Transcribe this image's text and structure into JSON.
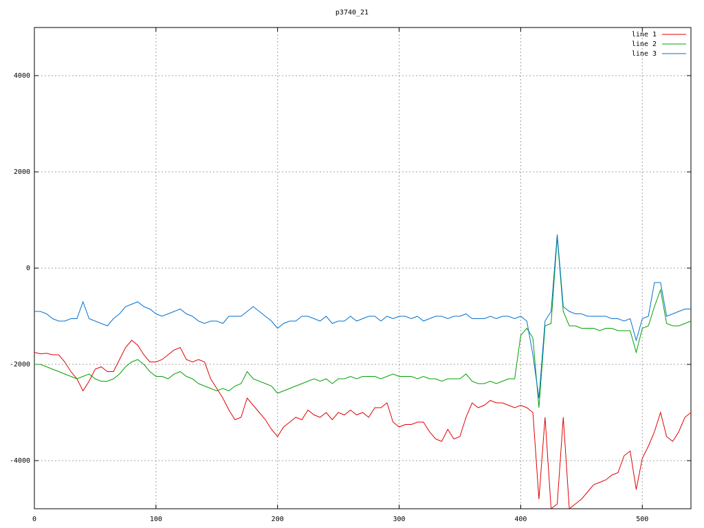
{
  "chart_data": {
    "type": "line",
    "title": "p3740_21",
    "x": [
      0,
      5,
      10,
      15,
      20,
      25,
      30,
      35,
      40,
      45,
      50,
      55,
      60,
      65,
      70,
      75,
      80,
      85,
      90,
      95,
      100,
      105,
      110,
      115,
      120,
      125,
      130,
      135,
      140,
      145,
      150,
      155,
      160,
      165,
      170,
      175,
      180,
      185,
      190,
      195,
      200,
      205,
      210,
      215,
      220,
      225,
      230,
      235,
      240,
      245,
      250,
      255,
      260,
      265,
      270,
      275,
      280,
      285,
      290,
      295,
      300,
      305,
      310,
      315,
      320,
      325,
      330,
      335,
      340,
      345,
      350,
      355,
      360,
      365,
      370,
      375,
      380,
      385,
      390,
      395,
      400,
      405,
      410,
      415,
      420,
      425,
      430,
      435,
      440,
      445,
      450,
      455,
      460,
      465,
      470,
      475,
      480,
      485,
      490,
      495,
      500,
      505,
      510,
      515,
      520,
      525,
      530,
      535,
      540
    ],
    "series": [
      {
        "name": "line 1",
        "color": "#e00000",
        "values": [
          -1750,
          -1780,
          -1770,
          -1800,
          -1800,
          -1950,
          -2150,
          -2300,
          -2550,
          -2350,
          -2100,
          -2050,
          -2150,
          -2150,
          -1900,
          -1650,
          -1500,
          -1600,
          -1800,
          -1950,
          -1950,
          -1900,
          -1800,
          -1700,
          -1650,
          -1900,
          -1950,
          -1900,
          -1950,
          -2300,
          -2500,
          -2700,
          -2950,
          -3150,
          -3100,
          -2700,
          -2850,
          -3000,
          -3150,
          -3350,
          -3500,
          -3300,
          -3200,
          -3100,
          -3150,
          -2950,
          -3050,
          -3100,
          -3000,
          -3150,
          -3000,
          -3050,
          -2950,
          -3050,
          -3000,
          -3100,
          -2900,
          -2900,
          -2800,
          -3200,
          -3300,
          -3250,
          -3250,
          -3200,
          -3200,
          -3400,
          -3550,
          -3600,
          -3350,
          -3550,
          -3500,
          -3100,
          -2800,
          -2900,
          -2850,
          -2750,
          -2800,
          -2800,
          -2850,
          -2900,
          -2850,
          -2900,
          -3000,
          -4800,
          -3100,
          -5000,
          -4900,
          -3100,
          -5000,
          -4900,
          -4800,
          -4650,
          -4500,
          -4450,
          -4400,
          -4300,
          -4250,
          -3900,
          -3800,
          -4600,
          -3950,
          -3700,
          -3400,
          -3000,
          -3500,
          -3600,
          -3400,
          -3100,
          -3000
        ]
      },
      {
        "name": "line 2",
        "color": "#00a000",
        "values": [
          -2000,
          -2000,
          -2050,
          -2100,
          -2150,
          -2200,
          -2250,
          -2300,
          -2250,
          -2200,
          -2300,
          -2350,
          -2350,
          -2300,
          -2200,
          -2050,
          -1950,
          -1900,
          -2000,
          -2150,
          -2250,
          -2250,
          -2300,
          -2200,
          -2150,
          -2250,
          -2300,
          -2400,
          -2450,
          -2500,
          -2550,
          -2500,
          -2550,
          -2450,
          -2400,
          -2150,
          -2300,
          -2350,
          -2400,
          -2450,
          -2600,
          -2550,
          -2500,
          -2450,
          -2400,
          -2350,
          -2300,
          -2350,
          -2300,
          -2400,
          -2300,
          -2300,
          -2250,
          -2300,
          -2250,
          -2250,
          -2250,
          -2300,
          -2250,
          -2200,
          -2250,
          -2250,
          -2250,
          -2300,
          -2250,
          -2300,
          -2300,
          -2350,
          -2300,
          -2300,
          -2300,
          -2200,
          -2350,
          -2400,
          -2400,
          -2350,
          -2400,
          -2350,
          -2300,
          -2300,
          -1400,
          -1250,
          -1450,
          -2900,
          -1200,
          -1150,
          650,
          -900,
          -1200,
          -1200,
          -1250,
          -1250,
          -1250,
          -1300,
          -1250,
          -1250,
          -1300,
          -1300,
          -1300,
          -1750,
          -1250,
          -1200,
          -800,
          -450,
          -1150,
          -1200,
          -1200,
          -1150,
          -1100
        ]
      },
      {
        "name": "line 3",
        "color": "#0070d0",
        "values": [
          -900,
          -900,
          -950,
          -1050,
          -1100,
          -1100,
          -1050,
          -1050,
          -700,
          -1050,
          -1100,
          -1150,
          -1200,
          -1050,
          -950,
          -800,
          -750,
          -700,
          -800,
          -850,
          -950,
          -1000,
          -950,
          -900,
          -850,
          -950,
          -1000,
          -1100,
          -1150,
          -1100,
          -1100,
          -1150,
          -1000,
          -1000,
          -1000,
          -900,
          -800,
          -900,
          -1000,
          -1100,
          -1250,
          -1150,
          -1100,
          -1100,
          -1000,
          -1000,
          -1050,
          -1100,
          -1000,
          -1150,
          -1100,
          -1100,
          -1000,
          -1100,
          -1050,
          -1000,
          -1000,
          -1100,
          -1000,
          -1050,
          -1000,
          -1000,
          -1050,
          -1000,
          -1100,
          -1050,
          -1000,
          -1000,
          -1050,
          -1000,
          -1000,
          -950,
          -1050,
          -1050,
          -1050,
          -1000,
          -1050,
          -1000,
          -1000,
          -1050,
          -1000,
          -1100,
          -1800,
          -2700,
          -1100,
          -900,
          700,
          -800,
          -900,
          -950,
          -950,
          -1000,
          -1000,
          -1000,
          -1000,
          -1050,
          -1050,
          -1100,
          -1050,
          -1500,
          -1050,
          -1000,
          -300,
          -300,
          -1000,
          -950,
          -900,
          -850,
          -850
        ]
      }
    ],
    "xlim": [
      0,
      540
    ],
    "ylim": [
      -5000,
      5000
    ],
    "xticks": [
      0,
      100,
      200,
      300,
      400,
      500
    ],
    "yticks": [
      -4000,
      -2000,
      0,
      2000,
      4000
    ],
    "grid": true,
    "legend": "top-right"
  }
}
